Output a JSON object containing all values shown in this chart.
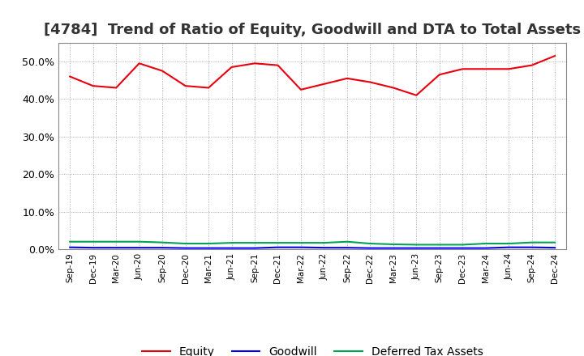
{
  "title": "[4784]  Trend of Ratio of Equity, Goodwill and DTA to Total Assets",
  "x_labels": [
    "Sep-19",
    "Dec-19",
    "Mar-20",
    "Jun-20",
    "Sep-20",
    "Dec-20",
    "Mar-21",
    "Jun-21",
    "Sep-21",
    "Dec-21",
    "Mar-22",
    "Jun-22",
    "Sep-22",
    "Dec-22",
    "Mar-23",
    "Jun-23",
    "Sep-23",
    "Dec-23",
    "Mar-24",
    "Jun-24",
    "Sep-24",
    "Dec-24"
  ],
  "equity": [
    46.0,
    43.5,
    43.0,
    49.5,
    47.5,
    43.5,
    43.0,
    48.5,
    49.5,
    49.0,
    42.5,
    44.0,
    45.5,
    44.5,
    43.0,
    41.0,
    46.5,
    48.0,
    48.0,
    48.0,
    49.0,
    51.5
  ],
  "goodwill": [
    0.5,
    0.4,
    0.4,
    0.4,
    0.4,
    0.3,
    0.3,
    0.3,
    0.3,
    0.5,
    0.5,
    0.4,
    0.4,
    0.3,
    0.3,
    0.3,
    0.3,
    0.3,
    0.3,
    0.5,
    0.5,
    0.4
  ],
  "dta": [
    2.0,
    2.0,
    2.0,
    2.0,
    1.8,
    1.5,
    1.5,
    1.7,
    1.7,
    1.7,
    1.7,
    1.7,
    2.0,
    1.5,
    1.3,
    1.2,
    1.2,
    1.2,
    1.5,
    1.5,
    1.8,
    1.8
  ],
  "equity_color": "#e8000d",
  "goodwill_color": "#0000ff",
  "dta_color": "#00a550",
  "background_color": "#ffffff",
  "grid_color": "#aaaaaa",
  "ylim": [
    0,
    55
  ],
  "yticks": [
    0,
    10,
    20,
    30,
    40,
    50
  ],
  "title_fontsize": 13,
  "legend_labels": [
    "Equity",
    "Goodwill",
    "Deferred Tax Assets"
  ]
}
